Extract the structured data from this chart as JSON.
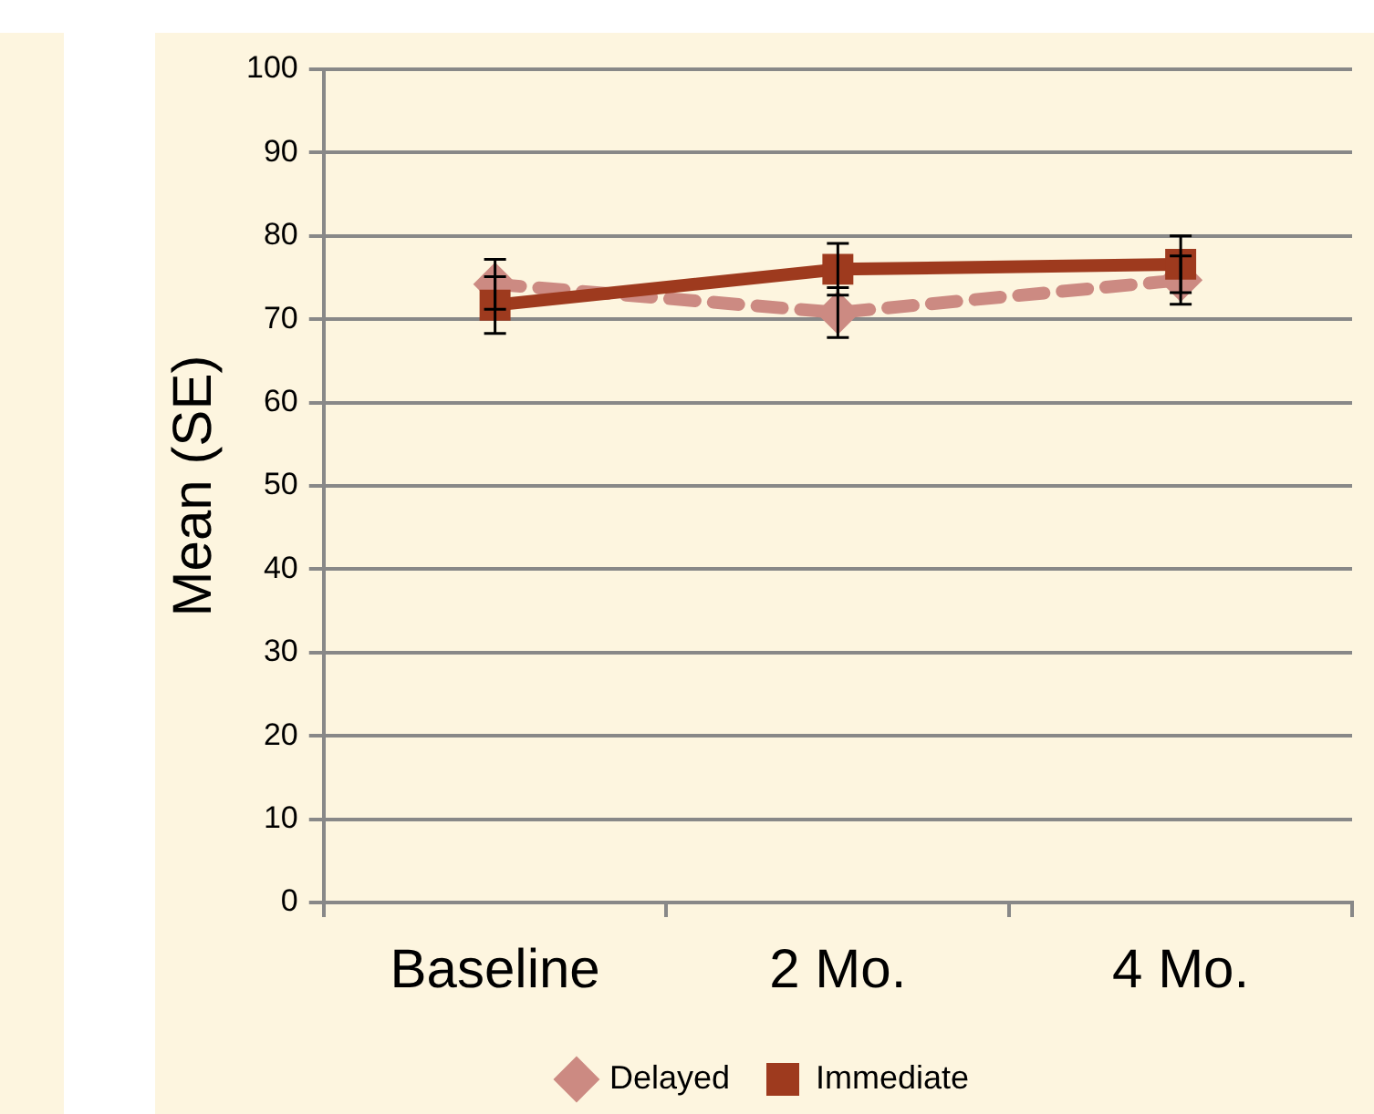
{
  "chart_data": {
    "type": "line",
    "ylabel": "Mean (SE)",
    "categories": [
      "Baseline",
      "2 Mo.",
      "4 Mo."
    ],
    "series": [
      {
        "name": "Delayed",
        "color": "#cc8a82",
        "values": [
          74.2,
          70.8,
          74.7
        ],
        "errors": [
          3,
          3,
          2.9
        ],
        "marker": "diamond",
        "line_style": "dashed"
      },
      {
        "name": "Immediate",
        "color": "#9e3a1e",
        "values": [
          71.7,
          76,
          76.6
        ],
        "errors": [
          3.4,
          3.1,
          3.4
        ],
        "marker": "square",
        "line_style": "solid"
      }
    ],
    "ylim": [
      0,
      100
    ],
    "yticks": [
      0,
      10,
      20,
      30,
      40,
      50,
      60,
      70,
      80,
      90,
      100
    ],
    "grid": "y",
    "legend": "bottom"
  }
}
